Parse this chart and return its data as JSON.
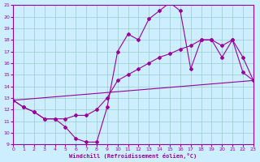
{
  "xlabel": "Windchill (Refroidissement éolien,°C)",
  "bg_color": "#cceeff",
  "line_color": "#990099",
  "grid_color": "#99cccc",
  "xmin": 0,
  "xmax": 23,
  "ymin": 9,
  "ymax": 21,
  "tick_color": "#990099",
  "series1_x": [
    0,
    1,
    2,
    3,
    4,
    5,
    6,
    7,
    8,
    9,
    10,
    11,
    12,
    13,
    14,
    15,
    16,
    17,
    18,
    19,
    20,
    21,
    22,
    23
  ],
  "series1_y": [
    12.8,
    12.2,
    11.8,
    11.2,
    11.2,
    10.5,
    9.5,
    9.2,
    9.2,
    12.2,
    17.0,
    18.5,
    18.0,
    19.8,
    20.5,
    21.2,
    20.5,
    15.5,
    18.0,
    18.0,
    16.5,
    18.0,
    15.2,
    14.5
  ],
  "series2_x": [
    0,
    23
  ],
  "series2_y": [
    12.8,
    14.5
  ],
  "series3_x": [
    0,
    1,
    2,
    3,
    4,
    5,
    6,
    7,
    8,
    9,
    10,
    11,
    12,
    13,
    14,
    15,
    16,
    17,
    18,
    19,
    20,
    21,
    22,
    23
  ],
  "series3_y": [
    12.8,
    12.2,
    11.8,
    11.2,
    11.2,
    11.2,
    11.5,
    11.5,
    12.0,
    13.0,
    14.5,
    15.0,
    15.5,
    16.0,
    16.5,
    16.8,
    17.2,
    17.5,
    18.0,
    18.0,
    17.5,
    18.0,
    16.5,
    14.5
  ]
}
